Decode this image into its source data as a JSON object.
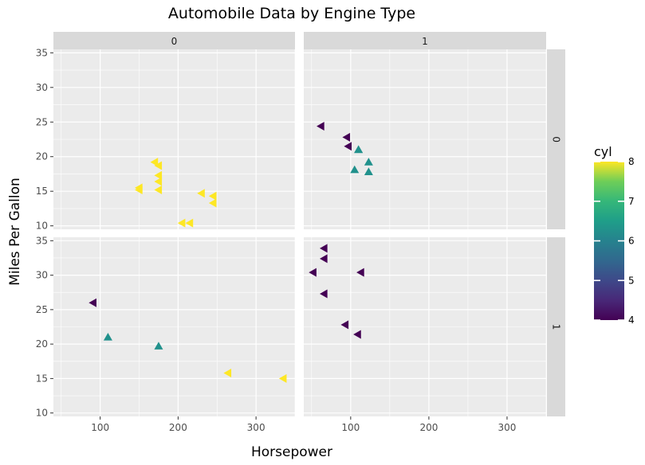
{
  "chart_data": {
    "type": "scatter",
    "title": "Automobile Data by Engine Type",
    "xlabel": "Horsepower",
    "ylabel": "Miles Per Gallon",
    "xlim": [
      40,
      350
    ],
    "ylim": [
      9.5,
      35.5
    ],
    "x_ticks": [
      100,
      200,
      300
    ],
    "y_ticks": [
      10,
      15,
      20,
      25,
      30,
      35
    ],
    "grid": true,
    "facet_columns": [
      "0",
      "1"
    ],
    "facet_rows": [
      "0",
      "1"
    ],
    "legend": {
      "title": "cyl",
      "ticks": [
        4,
        5,
        6,
        7,
        8
      ],
      "min": 4,
      "max": 8,
      "placement": "right"
    },
    "colors": {
      "cyl_4": "#440154",
      "cyl_6": "#21918c",
      "cyl_8": "#fde725",
      "panel_bg": "#ebebeb",
      "strip_bg": "#d9d9d9"
    },
    "panels": [
      {
        "col": "0",
        "row": "0",
        "points": [
          {
            "hp": 175,
            "mpg": 18.7,
            "cyl": 8,
            "shape": "left"
          },
          {
            "hp": 170,
            "mpg": 19.2,
            "cyl": 8,
            "shape": "left"
          },
          {
            "hp": 175,
            "mpg": 17.3,
            "cyl": 8,
            "shape": "left"
          },
          {
            "hp": 175,
            "mpg": 16.4,
            "cyl": 8,
            "shape": "left"
          },
          {
            "hp": 175,
            "mpg": 15.2,
            "cyl": 8,
            "shape": "left"
          },
          {
            "hp": 150,
            "mpg": 15.5,
            "cyl": 8,
            "shape": "left"
          },
          {
            "hp": 150,
            "mpg": 15.2,
            "cyl": 8,
            "shape": "left"
          },
          {
            "hp": 245,
            "mpg": 14.3,
            "cyl": 8,
            "shape": "left"
          },
          {
            "hp": 245,
            "mpg": 13.3,
            "cyl": 8,
            "shape": "left"
          },
          {
            "hp": 230,
            "mpg": 14.7,
            "cyl": 8,
            "shape": "left"
          },
          {
            "hp": 205,
            "mpg": 10.4,
            "cyl": 8,
            "shape": "left"
          },
          {
            "hp": 215,
            "mpg": 10.4,
            "cyl": 8,
            "shape": "left"
          }
        ]
      },
      {
        "col": "1",
        "row": "0",
        "points": [
          {
            "hp": 62,
            "mpg": 24.4,
            "cyl": 4,
            "shape": "left"
          },
          {
            "hp": 95,
            "mpg": 22.8,
            "cyl": 4,
            "shape": "left"
          },
          {
            "hp": 97,
            "mpg": 21.5,
            "cyl": 4,
            "shape": "left"
          },
          {
            "hp": 110,
            "mpg": 21.0,
            "cyl": 6,
            "shape": "up"
          },
          {
            "hp": 110,
            "mpg": 21.0,
            "cyl": 6,
            "shape": "up"
          },
          {
            "hp": 123,
            "mpg": 19.2,
            "cyl": 6,
            "shape": "up"
          },
          {
            "hp": 105,
            "mpg": 18.1,
            "cyl": 6,
            "shape": "up"
          },
          {
            "hp": 123,
            "mpg": 17.8,
            "cyl": 6,
            "shape": "up"
          }
        ]
      },
      {
        "col": "0",
        "row": "1",
        "points": [
          {
            "hp": 91,
            "mpg": 26.0,
            "cyl": 4,
            "shape": "left"
          },
          {
            "hp": 110,
            "mpg": 21.0,
            "cyl": 6,
            "shape": "up"
          },
          {
            "hp": 175,
            "mpg": 19.7,
            "cyl": 6,
            "shape": "up"
          },
          {
            "hp": 264,
            "mpg": 15.8,
            "cyl": 8,
            "shape": "left"
          },
          {
            "hp": 335,
            "mpg": 15.0,
            "cyl": 8,
            "shape": "left"
          }
        ]
      },
      {
        "col": "1",
        "row": "1",
        "points": [
          {
            "hp": 66,
            "mpg": 33.9,
            "cyl": 4,
            "shape": "left"
          },
          {
            "hp": 66,
            "mpg": 32.4,
            "cyl": 4,
            "shape": "left"
          },
          {
            "hp": 52,
            "mpg": 30.4,
            "cyl": 4,
            "shape": "left"
          },
          {
            "hp": 113,
            "mpg": 30.4,
            "cyl": 4,
            "shape": "left"
          },
          {
            "hp": 66,
            "mpg": 27.3,
            "cyl": 4,
            "shape": "left"
          },
          {
            "hp": 93,
            "mpg": 22.8,
            "cyl": 4,
            "shape": "left"
          },
          {
            "hp": 109,
            "mpg": 21.4,
            "cyl": 4,
            "shape": "left"
          }
        ]
      }
    ]
  }
}
